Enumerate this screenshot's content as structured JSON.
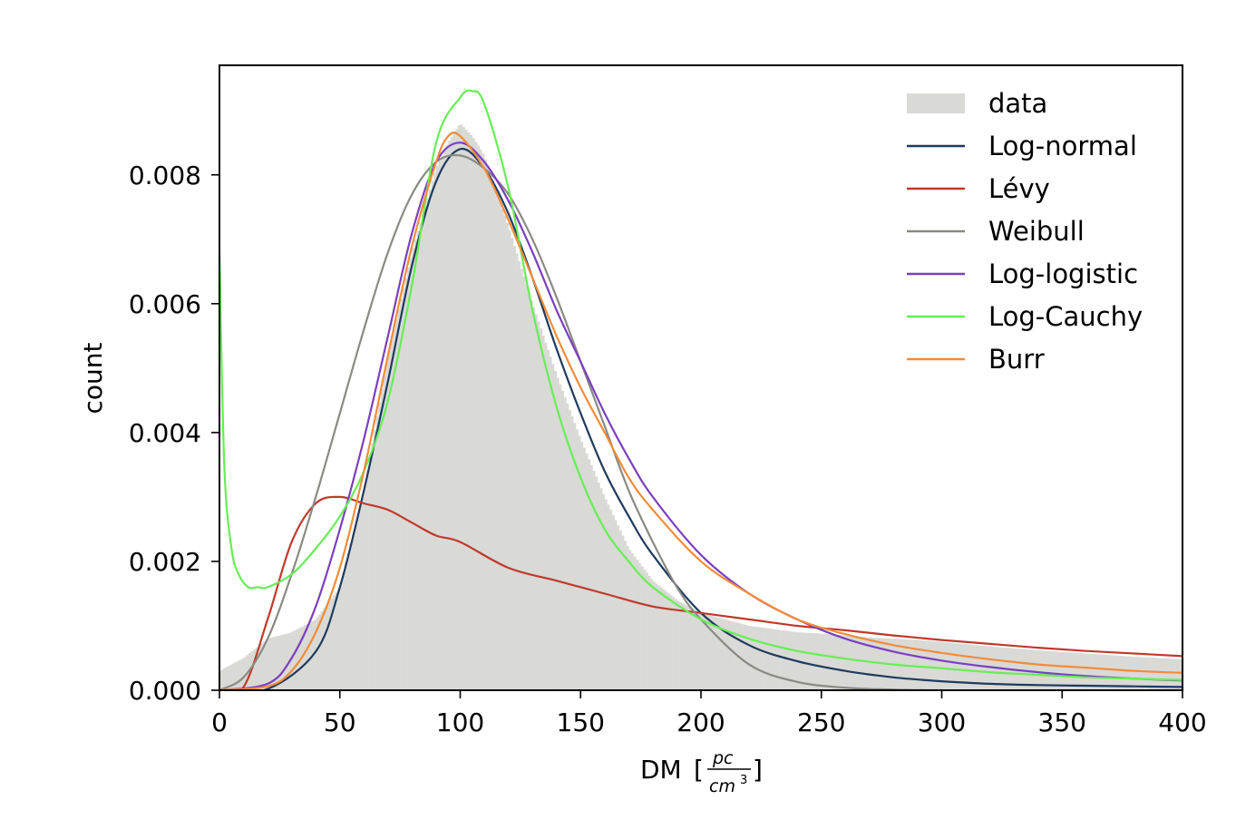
{
  "chart_data": {
    "type": "line",
    "xlabel": "DM",
    "xlabel_unit": {
      "open": "[",
      "numerator": "pc",
      "denominator": "cm",
      "exponent": "3",
      "close": "]"
    },
    "ylabel": "count",
    "xlim": [
      0,
      400
    ],
    "ylim": [
      0,
      0.0097
    ],
    "x_ticks": [
      0,
      50,
      100,
      150,
      200,
      250,
      300,
      350,
      400
    ],
    "x_tick_labels": [
      "0",
      "50",
      "100",
      "150",
      "200",
      "250",
      "300",
      "350",
      "400"
    ],
    "y_ticks": [
      0,
      0.002,
      0.004,
      0.006,
      0.008
    ],
    "y_tick_labels": [
      "0.000",
      "0.002",
      "0.004",
      "0.006",
      "0.008"
    ],
    "grid": false,
    "legend_position": "top-right",
    "histogram": {
      "name": "data",
      "color": "#d9d9d6",
      "x": [
        0,
        10,
        20,
        30,
        40,
        50,
        60,
        70,
        80,
        90,
        95,
        100,
        105,
        110,
        120,
        130,
        140,
        150,
        160,
        170,
        180,
        190,
        200,
        210,
        220,
        230,
        240,
        250,
        260,
        270,
        280,
        290,
        300,
        320,
        340,
        360,
        380,
        400
      ],
      "y": [
        0.0003,
        0.0005,
        0.0008,
        0.0009,
        0.0011,
        0.0016,
        0.0031,
        0.0052,
        0.0068,
        0.0081,
        0.0085,
        0.0088,
        0.0086,
        0.0083,
        0.0072,
        0.006,
        0.0049,
        0.0039,
        0.003,
        0.0022,
        0.0017,
        0.0014,
        0.0012,
        0.0011,
        0.001,
        0.00095,
        0.0009,
        0.00088,
        0.00085,
        0.00082,
        0.0008,
        0.00078,
        0.00075,
        0.00068,
        0.00062,
        0.00057,
        0.00052,
        0.00048
      ]
    },
    "series": [
      {
        "name": "Log-normal",
        "color": "#1f3a5f",
        "x": [
          0,
          20,
          40,
          50,
          60,
          70,
          80,
          90,
          100,
          110,
          120,
          130,
          140,
          150,
          160,
          170,
          180,
          200,
          220,
          240,
          260,
          280,
          300,
          320,
          340,
          360,
          380,
          400
        ],
        "y": [
          0,
          2e-05,
          0.0006,
          0.0016,
          0.0031,
          0.0048,
          0.0066,
          0.0079,
          0.0084,
          0.0081,
          0.0074,
          0.0064,
          0.0053,
          0.0043,
          0.0034,
          0.0027,
          0.0021,
          0.0012,
          0.0007,
          0.00045,
          0.0003,
          0.0002,
          0.00014,
          0.0001,
          8e-05,
          7e-05,
          6e-05,
          5e-05
        ]
      },
      {
        "name": "Lévy",
        "color": "#c0392b",
        "x": [
          0,
          10,
          20,
          30,
          40,
          50,
          60,
          70,
          80,
          90,
          100,
          120,
          140,
          160,
          180,
          200,
          220,
          240,
          260,
          280,
          300,
          320,
          340,
          360,
          380,
          400
        ],
        "y": [
          0,
          5e-05,
          0.0011,
          0.0023,
          0.0029,
          0.003,
          0.0029,
          0.0028,
          0.0026,
          0.0024,
          0.0023,
          0.0019,
          0.0017,
          0.0015,
          0.0013,
          0.0012,
          0.0011,
          0.001,
          0.00093,
          0.00085,
          0.00078,
          0.00072,
          0.00066,
          0.00061,
          0.00057,
          0.00053
        ]
      },
      {
        "name": "Weibull",
        "color": "#8a8a84",
        "x": [
          0,
          10,
          20,
          30,
          40,
          50,
          60,
          70,
          80,
          90,
          100,
          110,
          120,
          130,
          140,
          150,
          160,
          170,
          180,
          190,
          200,
          220,
          240,
          260,
          280,
          300
        ],
        "y": [
          0,
          0.0002,
          0.0008,
          0.0018,
          0.003,
          0.0043,
          0.0056,
          0.0068,
          0.0077,
          0.0082,
          0.0083,
          0.0081,
          0.0077,
          0.007,
          0.0061,
          0.0051,
          0.0041,
          0.0031,
          0.0023,
          0.0016,
          0.0011,
          0.0004,
          0.00013,
          4e-05,
          1e-05,
          0
        ]
      },
      {
        "name": "Log-logistic",
        "color": "#7b3fbf",
        "x": [
          0,
          20,
          30,
          40,
          50,
          60,
          70,
          80,
          90,
          100,
          110,
          120,
          130,
          140,
          150,
          160,
          170,
          180,
          200,
          220,
          240,
          260,
          280,
          300,
          320,
          340,
          360,
          380,
          400
        ],
        "y": [
          0,
          0.0001,
          0.0005,
          0.0013,
          0.0025,
          0.0039,
          0.0055,
          0.0071,
          0.0082,
          0.0085,
          0.0082,
          0.0076,
          0.0068,
          0.0059,
          0.0051,
          0.0043,
          0.0036,
          0.003,
          0.0021,
          0.0015,
          0.0011,
          0.0008,
          0.0006,
          0.00046,
          0.00036,
          0.00028,
          0.00022,
          0.00018,
          0.00015
        ]
      },
      {
        "name": "Log-Cauchy",
        "color": "#66ee55",
        "x": [
          0,
          2,
          5,
          8,
          12,
          16,
          20,
          30,
          40,
          50,
          60,
          70,
          80,
          90,
          100,
          105,
          110,
          120,
          130,
          140,
          150,
          160,
          170,
          180,
          200,
          220,
          240,
          260,
          280,
          300,
          320,
          340,
          360,
          380,
          400
        ],
        "y": [
          0.0068,
          0.0035,
          0.0022,
          0.0018,
          0.0016,
          0.0016,
          0.0016,
          0.0018,
          0.0022,
          0.0027,
          0.0034,
          0.0045,
          0.0063,
          0.0085,
          0.0092,
          0.0093,
          0.0091,
          0.0078,
          0.0059,
          0.0044,
          0.0033,
          0.0025,
          0.002,
          0.0016,
          0.0011,
          0.0008,
          0.00061,
          0.00049,
          0.0004,
          0.00034,
          0.00028,
          0.00024,
          0.0002,
          0.00018,
          0.00016
        ]
      },
      {
        "name": "Burr",
        "color": "#f28c38",
        "x": [
          0,
          20,
          30,
          40,
          50,
          60,
          70,
          80,
          90,
          95,
          100,
          110,
          120,
          130,
          140,
          150,
          160,
          170,
          180,
          200,
          220,
          240,
          260,
          280,
          300,
          320,
          340,
          360,
          380,
          400
        ],
        "y": [
          0,
          6e-05,
          0.0003,
          0.0009,
          0.0019,
          0.0034,
          0.0052,
          0.0069,
          0.0082,
          0.0086,
          0.0086,
          0.0081,
          0.0073,
          0.0064,
          0.0055,
          0.0047,
          0.004,
          0.0033,
          0.0028,
          0.002,
          0.0015,
          0.0011,
          0.00087,
          0.0007,
          0.00058,
          0.00048,
          0.0004,
          0.00035,
          0.0003,
          0.00027
        ]
      }
    ]
  }
}
